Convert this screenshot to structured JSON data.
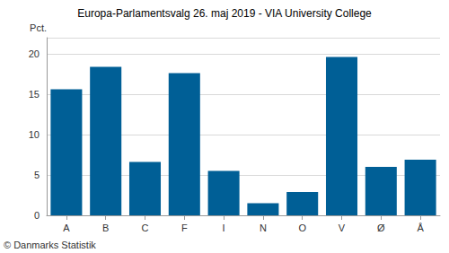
{
  "chart_data": {
    "type": "bar",
    "title": "Europa-Parlamentsvalg 26. maj 2019 - VIA University College",
    "y_label": "Pct.",
    "source": "© Danmarks Statistik",
    "categories": [
      "A",
      "B",
      "C",
      "F",
      "I",
      "N",
      "O",
      "V",
      "Ø",
      "Å"
    ],
    "values": [
      15.6,
      18.4,
      6.6,
      17.6,
      5.5,
      1.5,
      2.9,
      19.6,
      6.0,
      6.9
    ],
    "color": "#005f96",
    "ylim": [
      0,
      22
    ],
    "yticks": [
      0,
      5,
      10,
      15,
      20
    ],
    "grid": true
  }
}
